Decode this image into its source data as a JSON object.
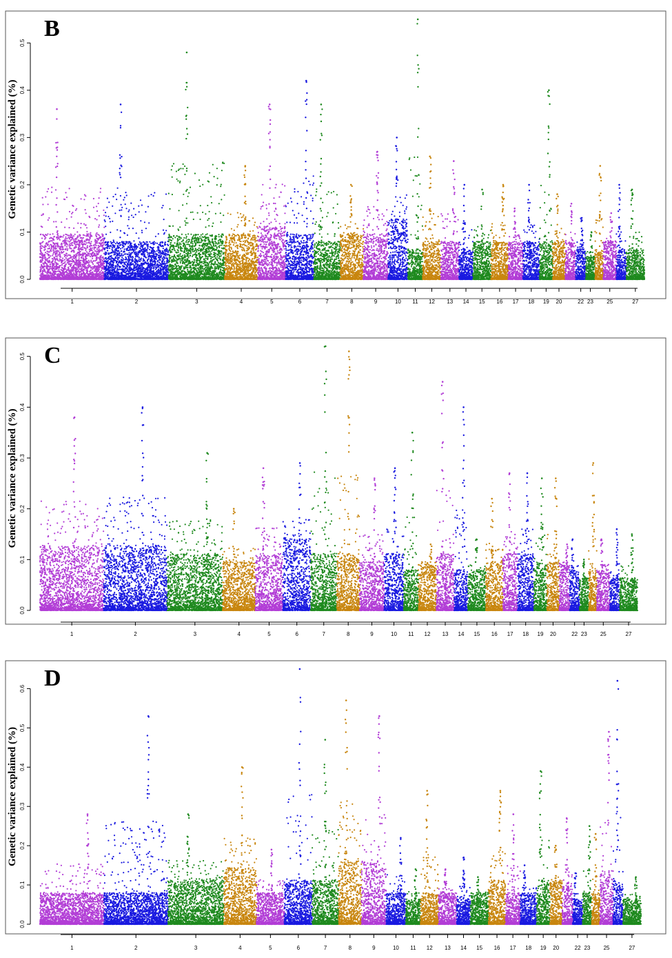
{
  "figure": {
    "ylabel": "Genetic variance explained (%)"
  },
  "palette": {
    "purple": "#b23ed6",
    "blue": "#1a1ae0",
    "green": "#1f8a1f",
    "orange": "#c8860f",
    "axis": "#000000",
    "frame": "#555555"
  },
  "chart_data": [
    {
      "type": "scatter",
      "panel_label": "B",
      "ylabel": "Genetic variance explained (%)",
      "ylim": [
        0,
        0.55
      ],
      "yticks": [
        "0.0",
        "0.1",
        "0.2",
        "0.3",
        "0.4",
        "0.5"
      ],
      "xtick_labels": [
        "1",
        "2",
        "3",
        "4",
        "5",
        "6",
        "7",
        "8",
        "9",
        "10",
        "11",
        "12",
        "13",
        "14",
        "15",
        "16",
        "17",
        "18",
        "19",
        "20",
        "22",
        "23",
        "25",
        "27"
      ],
      "chromosomes": [
        {
          "chr": 1,
          "color": "purple",
          "peak": 0.36,
          "base": 0.06
        },
        {
          "chr": 2,
          "color": "blue",
          "peak": 0.37,
          "base": 0.05
        },
        {
          "chr": 3,
          "color": "green",
          "peak": 0.48,
          "base": 0.06
        },
        {
          "chr": 4,
          "color": "orange",
          "peak": 0.24,
          "base": 0.06
        },
        {
          "chr": 5,
          "color": "purple",
          "peak": 0.37,
          "base": 0.07
        },
        {
          "chr": 6,
          "color": "blue",
          "peak": 0.42,
          "base": 0.06
        },
        {
          "chr": 7,
          "color": "green",
          "peak": 0.37,
          "base": 0.05
        },
        {
          "chr": 8,
          "color": "orange",
          "peak": 0.2,
          "base": 0.06
        },
        {
          "chr": 9,
          "color": "purple",
          "peak": 0.27,
          "base": 0.06
        },
        {
          "chr": 10,
          "color": "blue",
          "peak": 0.3,
          "base": 0.08
        },
        {
          "chr": 11,
          "color": "green",
          "peak": 0.55,
          "base": 0.04
        },
        {
          "chr": 12,
          "color": "orange",
          "peak": 0.26,
          "base": 0.05
        },
        {
          "chr": 13,
          "color": "purple",
          "peak": 0.25,
          "base": 0.05
        },
        {
          "chr": 14,
          "color": "blue",
          "peak": 0.2,
          "base": 0.04
        },
        {
          "chr": 15,
          "color": "green",
          "peak": 0.19,
          "base": 0.05
        },
        {
          "chr": 16,
          "color": "orange",
          "peak": 0.2,
          "base": 0.05
        },
        {
          "chr": 17,
          "color": "purple",
          "peak": 0.15,
          "base": 0.05
        },
        {
          "chr": 18,
          "color": "blue",
          "peak": 0.2,
          "base": 0.05
        },
        {
          "chr": 19,
          "color": "green",
          "peak": 0.4,
          "base": 0.05
        },
        {
          "chr": 20,
          "color": "orange",
          "peak": 0.18,
          "base": 0.05
        },
        {
          "chr": 21,
          "color": "purple",
          "peak": 0.16,
          "base": 0.05
        },
        {
          "chr": 22,
          "color": "blue",
          "peak": 0.13,
          "base": 0.04
        },
        {
          "chr": 23,
          "color": "green",
          "peak": 0.1,
          "base": 0.03
        },
        {
          "chr": 24,
          "color": "orange",
          "peak": 0.24,
          "base": 0.04
        },
        {
          "chr": 25,
          "color": "purple",
          "peak": 0.14,
          "base": 0.05
        },
        {
          "chr": 26,
          "color": "blue",
          "peak": 0.2,
          "base": 0.04
        },
        {
          "chr": 27,
          "color": "green",
          "peak": 0.19,
          "base": 0.04
        }
      ]
    },
    {
      "type": "scatter",
      "panel_label": "C",
      "ylabel": "Genetic variance explained (%)",
      "ylim": [
        0,
        0.52
      ],
      "yticks": [
        "0.0",
        "0.1",
        "0.2",
        "0.3",
        "0.4",
        "0.5"
      ],
      "xtick_labels": [
        "1",
        "2",
        "3",
        "4",
        "5",
        "6",
        "7",
        "8",
        "9",
        "10",
        "11",
        "12",
        "13",
        "14",
        "15",
        "16",
        "17",
        "18",
        "19",
        "20",
        "22",
        "23",
        "25",
        "27"
      ],
      "chromosomes": [
        {
          "chr": 1,
          "color": "purple",
          "peak": 0.38,
          "base": 0.08
        },
        {
          "chr": 2,
          "color": "blue",
          "peak": 0.4,
          "base": 0.08
        },
        {
          "chr": 3,
          "color": "green",
          "peak": 0.31,
          "base": 0.07
        },
        {
          "chr": 4,
          "color": "orange",
          "peak": 0.2,
          "base": 0.06
        },
        {
          "chr": 5,
          "color": "purple",
          "peak": 0.28,
          "base": 0.07
        },
        {
          "chr": 6,
          "color": "blue",
          "peak": 0.29,
          "base": 0.09
        },
        {
          "chr": 7,
          "color": "green",
          "peak": 0.52,
          "base": 0.07
        },
        {
          "chr": 8,
          "color": "orange",
          "peak": 0.51,
          "base": 0.07
        },
        {
          "chr": 9,
          "color": "purple",
          "peak": 0.26,
          "base": 0.06
        },
        {
          "chr": 10,
          "color": "blue",
          "peak": 0.28,
          "base": 0.07
        },
        {
          "chr": 11,
          "color": "green",
          "peak": 0.35,
          "base": 0.05
        },
        {
          "chr": 12,
          "color": "orange",
          "peak": 0.13,
          "base": 0.06
        },
        {
          "chr": 13,
          "color": "purple",
          "peak": 0.45,
          "base": 0.07
        },
        {
          "chr": 14,
          "color": "blue",
          "peak": 0.4,
          "base": 0.05
        },
        {
          "chr": 15,
          "color": "green",
          "peak": 0.14,
          "base": 0.05
        },
        {
          "chr": 16,
          "color": "orange",
          "peak": 0.22,
          "base": 0.06
        },
        {
          "chr": 17,
          "color": "purple",
          "peak": 0.27,
          "base": 0.07
        },
        {
          "chr": 18,
          "color": "blue",
          "peak": 0.27,
          "base": 0.07
        },
        {
          "chr": 19,
          "color": "green",
          "peak": 0.26,
          "base": 0.06
        },
        {
          "chr": 20,
          "color": "orange",
          "peak": 0.26,
          "base": 0.06
        },
        {
          "chr": 21,
          "color": "purple",
          "peak": 0.13,
          "base": 0.06
        },
        {
          "chr": 22,
          "color": "blue",
          "peak": 0.14,
          "base": 0.05
        },
        {
          "chr": 23,
          "color": "green",
          "peak": 0.1,
          "base": 0.04
        },
        {
          "chr": 24,
          "color": "orange",
          "peak": 0.29,
          "base": 0.05
        },
        {
          "chr": 25,
          "color": "purple",
          "peak": 0.14,
          "base": 0.05
        },
        {
          "chr": 26,
          "color": "blue",
          "peak": 0.16,
          "base": 0.04
        },
        {
          "chr": 27,
          "color": "green",
          "peak": 0.15,
          "base": 0.04
        }
      ]
    },
    {
      "type": "scatter",
      "panel_label": "D",
      "ylabel": "Genetic variance explained (%)",
      "ylim": [
        0,
        0.65
      ],
      "yticks": [
        "0.0",
        "0.1",
        "0.2",
        "0.3",
        "0.4",
        "0.5",
        "0.6"
      ],
      "xtick_labels": [
        "1",
        "2",
        "3",
        "4",
        "5",
        "6",
        "7",
        "8",
        "9",
        "10",
        "11",
        "12",
        "13",
        "14",
        "15",
        "16",
        "17",
        "18",
        "19",
        "20",
        "22",
        "23",
        "25",
        "27"
      ],
      "chromosomes": [
        {
          "chr": 1,
          "color": "purple",
          "peak": 0.28,
          "base": 0.05
        },
        {
          "chr": 2,
          "color": "blue",
          "peak": 0.53,
          "base": 0.05
        },
        {
          "chr": 3,
          "color": "green",
          "peak": 0.28,
          "base": 0.07
        },
        {
          "chr": 4,
          "color": "orange",
          "peak": 0.4,
          "base": 0.09
        },
        {
          "chr": 5,
          "color": "purple",
          "peak": 0.19,
          "base": 0.05
        },
        {
          "chr": 6,
          "color": "blue",
          "peak": 0.65,
          "base": 0.07
        },
        {
          "chr": 7,
          "color": "green",
          "peak": 0.47,
          "base": 0.07
        },
        {
          "chr": 8,
          "color": "orange",
          "peak": 0.57,
          "base": 0.1
        },
        {
          "chr": 9,
          "color": "purple",
          "peak": 0.53,
          "base": 0.1
        },
        {
          "chr": 10,
          "color": "blue",
          "peak": 0.22,
          "base": 0.05
        },
        {
          "chr": 11,
          "color": "green",
          "peak": 0.14,
          "base": 0.04
        },
        {
          "chr": 12,
          "color": "orange",
          "peak": 0.34,
          "base": 0.05
        },
        {
          "chr": 13,
          "color": "purple",
          "peak": 0.14,
          "base": 0.05
        },
        {
          "chr": 14,
          "color": "blue",
          "peak": 0.17,
          "base": 0.04
        },
        {
          "chr": 15,
          "color": "green",
          "peak": 0.12,
          "base": 0.05
        },
        {
          "chr": 16,
          "color": "orange",
          "peak": 0.34,
          "base": 0.07
        },
        {
          "chr": 17,
          "color": "purple",
          "peak": 0.28,
          "base": 0.05
        },
        {
          "chr": 18,
          "color": "blue",
          "peak": 0.15,
          "base": 0.05
        },
        {
          "chr": 19,
          "color": "green",
          "peak": 0.39,
          "base": 0.07
        },
        {
          "chr": 20,
          "color": "orange",
          "peak": 0.2,
          "base": 0.07
        },
        {
          "chr": 21,
          "color": "purple",
          "peak": 0.27,
          "base": 0.06
        },
        {
          "chr": 22,
          "color": "blue",
          "peak": 0.13,
          "base": 0.04
        },
        {
          "chr": 23,
          "color": "green",
          "peak": 0.25,
          "base": 0.05
        },
        {
          "chr": 24,
          "color": "orange",
          "peak": 0.23,
          "base": 0.05
        },
        {
          "chr": 25,
          "color": "purple",
          "peak": 0.49,
          "base": 0.08
        },
        {
          "chr": 26,
          "color": "blue",
          "peak": 0.62,
          "base": 0.07
        },
        {
          "chr": 27,
          "color": "green",
          "peak": 0.12,
          "base": 0.04
        }
      ]
    }
  ]
}
